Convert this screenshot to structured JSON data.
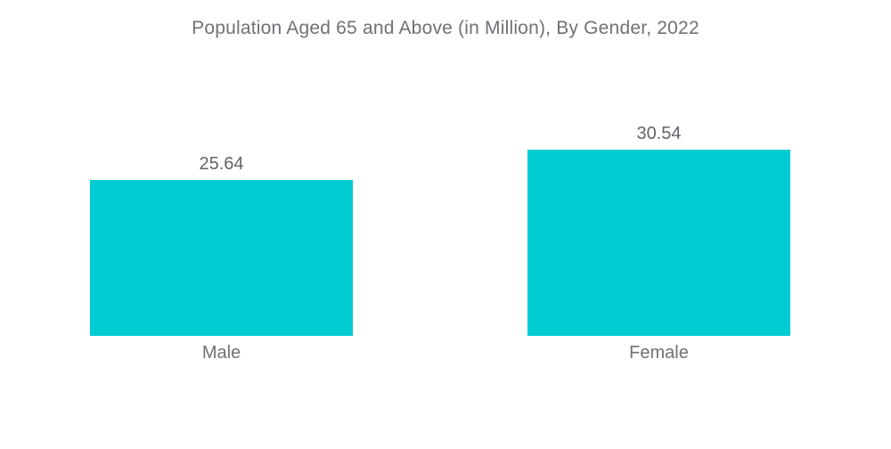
{
  "title": "Population Aged 65 and Above (in Million), By Gender, 2022",
  "chart_data": {
    "type": "bar",
    "title": "Population Aged 65 and Above (in Million), By Gender, 2022",
    "categories": [
      "Male",
      "Female"
    ],
    "values": [
      25.64,
      30.54
    ],
    "value_labels": [
      "25.64",
      "30.54"
    ],
    "xlabel": "",
    "ylabel": "",
    "unit": "Million",
    "ylim": [
      0,
      30.54
    ],
    "grid": false,
    "legend_position": "none",
    "colors": {
      "bar_fill": "#00CCD2",
      "title_text": "#6d7276",
      "value_text": "#606569",
      "category_text": "#6d7276",
      "background": "#ffffff"
    }
  }
}
